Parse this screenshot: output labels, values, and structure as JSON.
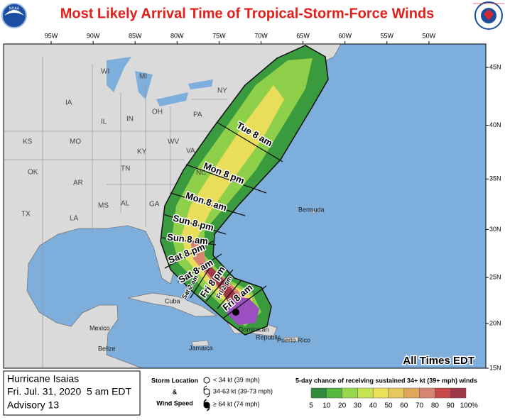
{
  "header": {
    "title": "Most Likely Arrival Time of Tropical-Storm-Force Winds",
    "logo_left": "NOAA",
    "logo_right": "NATIONAL WEATHER SERVICE"
  },
  "map": {
    "longitude_ticks": [
      {
        "value": -95,
        "label": "95W"
      },
      {
        "value": -90,
        "label": "90W"
      },
      {
        "value": -85,
        "label": "85W"
      },
      {
        "value": -80,
        "label": "80W"
      },
      {
        "value": -75,
        "label": "75W"
      },
      {
        "value": -70,
        "label": "70W"
      },
      {
        "value": -65,
        "label": "65W"
      },
      {
        "value": -60,
        "label": "60W"
      },
      {
        "value": -55,
        "label": "55W"
      },
      {
        "value": -50,
        "label": "50W"
      }
    ],
    "latitude_ticks": [
      {
        "value": 45,
        "label": "45N"
      },
      {
        "value": 40,
        "label": "40N"
      },
      {
        "value": 35,
        "label": "35N"
      },
      {
        "value": 30,
        "label": "30N"
      },
      {
        "value": 25,
        "label": "25N"
      },
      {
        "value": 20,
        "label": "20N"
      },
      {
        "value": 15,
        "label": "15N"
      }
    ],
    "states": [
      "WI",
      "MI",
      "IA",
      "IL",
      "IN",
      "OH",
      "PA",
      "NY",
      "MO",
      "KY",
      "WV",
      "VA",
      "KS",
      "OK",
      "TN",
      "NC",
      "AR",
      "MS",
      "AL",
      "GA",
      "LA",
      "TX"
    ],
    "places": [
      "Bermuda",
      "Cuba",
      "Mexico",
      "Belize",
      "Jamaica",
      "Dominican",
      "Republic",
      "Puerto Rico"
    ],
    "arrival_times": [
      "Tue 8 am",
      "Mon 8 pm",
      "Mon 8 am",
      "Sun 8 pm",
      "Sun 8 am",
      "Sat 8 pm",
      "Sat 8 am",
      "Sat 2 am",
      "Fri 8 pm",
      "Fri 2 pm",
      "Fri 8 am"
    ],
    "time_note": "All Times EDT"
  },
  "footer": {
    "storm": "Hurricane Isaias",
    "issued": "Fri. Jul. 31, 2020  5 am EDT",
    "advisory": "Advisory 13",
    "storm_legend": {
      "line_1": "Storm Location",
      "line_2": "&",
      "line_3": "Wind Speed",
      "items": [
        "< 34 kt (39 mph)",
        "34-63 kt (39-73 mph)",
        "≥ 64 kt (74 mph)"
      ]
    },
    "probability": {
      "title": "5-day chance of receiving sustained 34+ kt (39+ mph) winds",
      "ticks": [
        5,
        10,
        20,
        30,
        40,
        50,
        60,
        70,
        80,
        90,
        100
      ],
      "unit": "%",
      "colors": [
        "#2f8a3c",
        "#54b83e",
        "#98d84c",
        "#c6e553",
        "#ece25a",
        "#e6c85e",
        "#e0a65a",
        "#d88472",
        "#c9494b",
        "#a03848",
        "#9b4fc0"
      ]
    }
  }
}
